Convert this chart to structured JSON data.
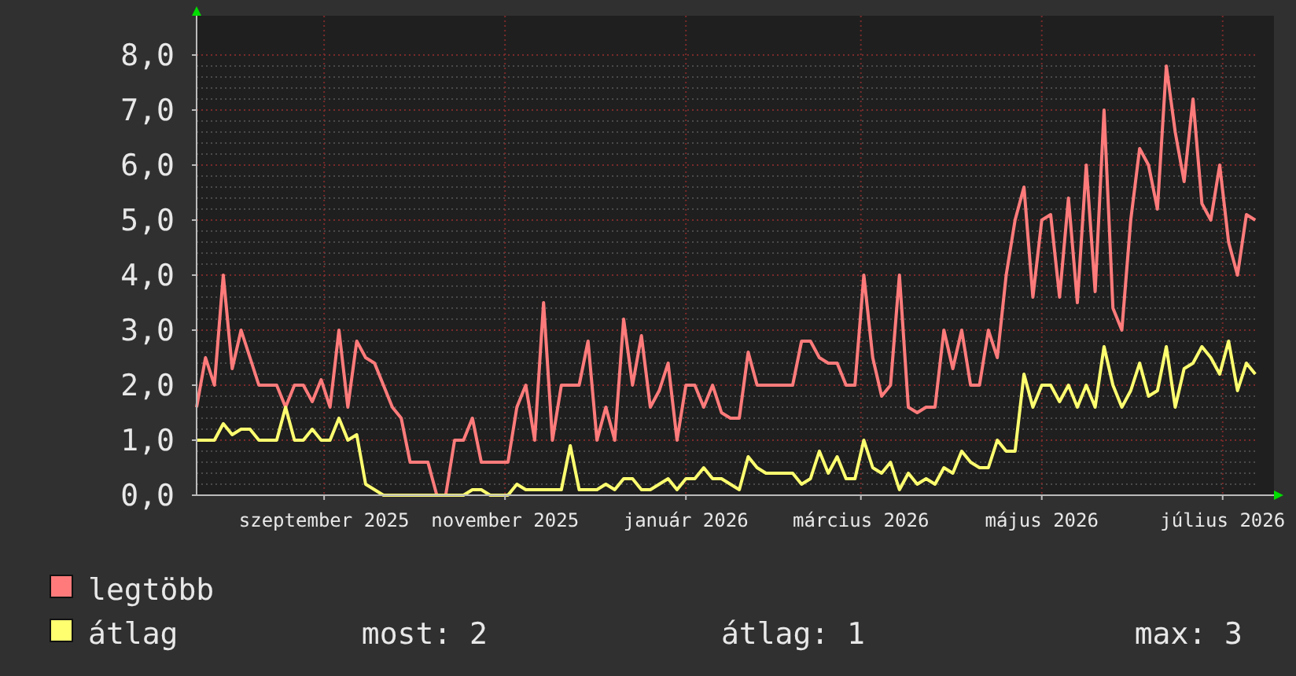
{
  "chart_data": {
    "type": "line",
    "x": [
      "2025-07-20",
      "2025-07-23",
      "2025-07-26",
      "2025-07-29",
      "2025-08-01",
      "2025-08-04",
      "2025-08-07",
      "2025-08-10",
      "2025-08-13",
      "2025-08-16",
      "2025-08-19",
      "2025-08-22",
      "2025-08-25",
      "2025-08-28",
      "2025-08-31",
      "2025-09-03",
      "2025-09-06",
      "2025-09-09",
      "2025-09-12",
      "2025-09-15",
      "2025-09-18",
      "2025-09-21",
      "2025-09-24",
      "2025-09-27",
      "2025-09-30",
      "2025-10-03",
      "2025-10-06",
      "2025-10-09",
      "2025-10-12",
      "2025-10-15",
      "2025-10-18",
      "2025-10-21",
      "2025-10-24",
      "2025-10-27",
      "2025-10-30",
      "2025-11-02",
      "2025-11-05",
      "2025-11-08",
      "2025-11-11",
      "2025-11-14",
      "2025-11-17",
      "2025-11-20",
      "2025-11-23",
      "2025-11-26",
      "2025-11-29",
      "2025-12-02",
      "2025-12-05",
      "2025-12-08",
      "2025-12-11",
      "2025-12-14",
      "2025-12-17",
      "2025-12-20",
      "2025-12-23",
      "2025-12-26",
      "2025-12-29",
      "2026-01-01",
      "2026-01-04",
      "2026-01-07",
      "2026-01-10",
      "2026-01-13",
      "2026-01-16",
      "2026-01-19",
      "2026-01-22",
      "2026-01-25",
      "2026-01-28",
      "2026-01-31",
      "2026-02-03",
      "2026-02-06",
      "2026-02-09",
      "2026-02-12",
      "2026-02-15",
      "2026-02-18",
      "2026-02-21",
      "2026-02-24",
      "2026-02-27",
      "2026-03-02",
      "2026-03-05",
      "2026-03-08",
      "2026-03-11",
      "2026-03-14",
      "2026-03-17",
      "2026-03-20",
      "2026-03-23",
      "2026-03-26",
      "2026-03-29",
      "2026-04-01",
      "2026-04-04",
      "2026-04-07",
      "2026-04-10",
      "2026-04-13",
      "2026-04-16",
      "2026-04-19",
      "2026-04-22",
      "2026-04-25",
      "2026-04-28",
      "2026-05-01",
      "2026-05-04",
      "2026-05-07",
      "2026-05-10",
      "2026-05-13",
      "2026-05-16",
      "2026-05-19",
      "2026-05-22",
      "2026-05-25",
      "2026-05-28",
      "2026-05-31",
      "2026-06-03",
      "2026-06-06",
      "2026-06-09",
      "2026-06-12",
      "2026-06-15",
      "2026-06-18",
      "2026-06-21",
      "2026-06-24",
      "2026-06-27",
      "2026-06-30",
      "2026-07-03",
      "2026-07-06",
      "2026-07-09",
      "2026-07-12"
    ],
    "series": [
      {
        "name": "legtöbb",
        "color": "#ff7b7b",
        "values": [
          1.6,
          2.5,
          2.0,
          4.0,
          2.3,
          3.0,
          2.5,
          2.0,
          2.0,
          2.0,
          1.6,
          2.0,
          2.0,
          1.7,
          2.1,
          1.6,
          3.0,
          1.6,
          2.8,
          2.5,
          2.4,
          2.0,
          1.6,
          1.4,
          0.6,
          0.6,
          0.6,
          0,
          0,
          1.0,
          1.0,
          1.4,
          0.6,
          0.6,
          0.6,
          0.6,
          1.6,
          2.0,
          1.0,
          3.5,
          1.0,
          2.0,
          2.0,
          2.0,
          2.8,
          1.0,
          1.6,
          1.0,
          3.2,
          2.0,
          2.9,
          1.6,
          1.9,
          2.4,
          1.0,
          2.0,
          2.0,
          1.6,
          2.0,
          1.5,
          1.4,
          1.4,
          2.6,
          2.0,
          2.0,
          2.0,
          2.0,
          2.0,
          2.8,
          2.8,
          2.5,
          2.4,
          2.4,
          2.0,
          2.0,
          4.0,
          2.5,
          1.8,
          2.0,
          4.0,
          1.6,
          1.5,
          1.6,
          1.6,
          3.0,
          2.3,
          3.0,
          2.0,
          2.0,
          3.0,
          2.5,
          4.0,
          5.0,
          5.6,
          3.6,
          5.0,
          5.1,
          3.6,
          5.4,
          3.5,
          6.0,
          3.7,
          7.0,
          3.4,
          3.0,
          5.0,
          6.3,
          6.0,
          5.2,
          7.8,
          6.6,
          5.7,
          7.2,
          5.3,
          5.0,
          6.0,
          4.6,
          4.0,
          5.1,
          5.0
        ]
      },
      {
        "name": "átlag",
        "color": "#ffff70",
        "values": [
          1.0,
          1.0,
          1.0,
          1.3,
          1.1,
          1.2,
          1.2,
          1.0,
          1.0,
          1.0,
          1.6,
          1.0,
          1.0,
          1.2,
          1.0,
          1.0,
          1.4,
          1.0,
          1.1,
          0.2,
          0.1,
          0,
          0,
          0,
          0,
          0,
          0,
          0,
          0,
          0,
          0,
          0.1,
          0.1,
          0,
          0,
          0,
          0.2,
          0.1,
          0.1,
          0.1,
          0.1,
          0.1,
          0.9,
          0.1,
          0.1,
          0.1,
          0.2,
          0.1,
          0.3,
          0.3,
          0.1,
          0.1,
          0.2,
          0.3,
          0.1,
          0.3,
          0.3,
          0.5,
          0.3,
          0.3,
          0.2,
          0.1,
          0.7,
          0.5,
          0.4,
          0.4,
          0.4,
          0.4,
          0.2,
          0.3,
          0.8,
          0.4,
          0.7,
          0.3,
          0.3,
          1.0,
          0.5,
          0.4,
          0.6,
          0.1,
          0.4,
          0.2,
          0.3,
          0.2,
          0.5,
          0.4,
          0.8,
          0.6,
          0.5,
          0.5,
          1.0,
          0.8,
          0.8,
          2.2,
          1.6,
          2.0,
          2.0,
          1.7,
          2.0,
          1.6,
          2.0,
          1.6,
          2.7,
          2.0,
          1.6,
          1.9,
          2.4,
          1.8,
          1.9,
          2.7,
          1.6,
          2.3,
          2.4,
          2.7,
          2.5,
          2.2,
          2.8,
          1.9,
          2.4,
          2.2
        ]
      }
    ],
    "xlim": [
      "2025-07-20",
      "2026-07-13"
    ],
    "xticks": [
      {
        "value": "2025-09-01",
        "label": "szeptember 2025"
      },
      {
        "value": "2025-11-01",
        "label": "november 2025"
      },
      {
        "value": "2026-01-01",
        "label": "január 2026"
      },
      {
        "value": "2026-03-01",
        "label": "március 2026"
      },
      {
        "value": "2026-05-01",
        "label": "május 2026"
      },
      {
        "value": "2026-07-01",
        "label": "július 2026"
      }
    ],
    "ylim": [
      0,
      8
    ],
    "yticks": [
      {
        "value": 0,
        "label": "0,0"
      },
      {
        "value": 1,
        "label": "1,0"
      },
      {
        "value": 2,
        "label": "2,0"
      },
      {
        "value": 3,
        "label": "3,0"
      },
      {
        "value": 4,
        "label": "4,0"
      },
      {
        "value": 5,
        "label": "5,0"
      },
      {
        "value": 6,
        "label": "6,0"
      },
      {
        "value": 7,
        "label": "7,0"
      },
      {
        "value": 8,
        "label": "8,0"
      }
    ],
    "grid": true,
    "legend": "bottom",
    "annotations": [
      "most: 2",
      "átlag: 1",
      "max: 3"
    ]
  }
}
